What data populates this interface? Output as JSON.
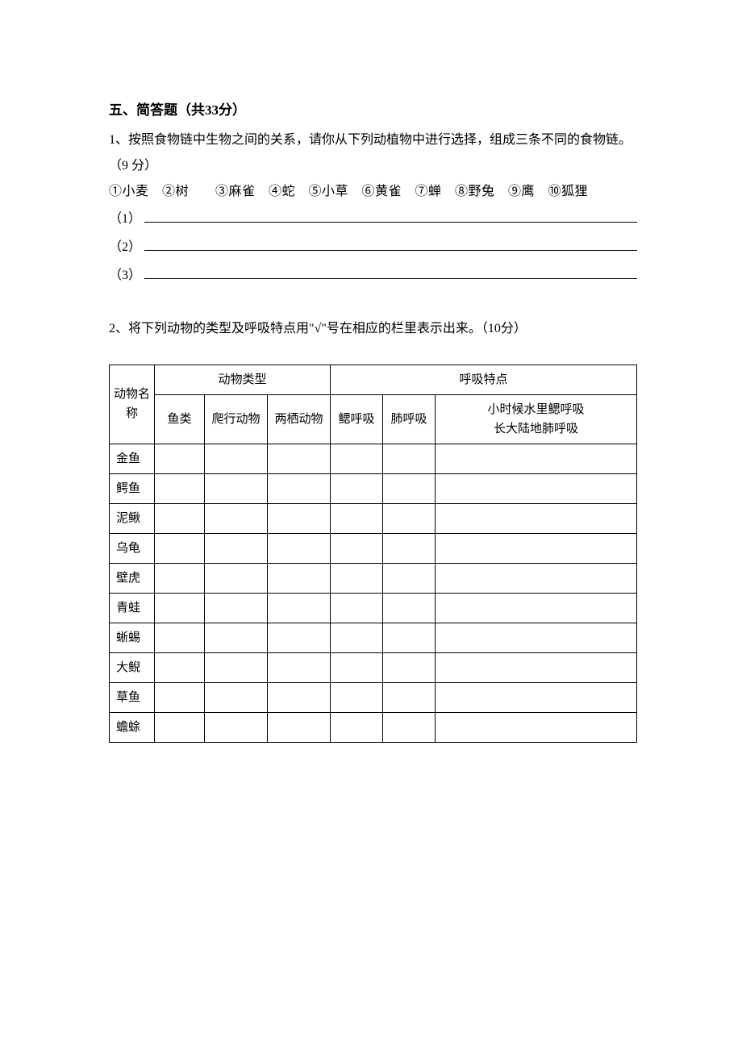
{
  "section": {
    "title": "五、简答题（共33分）"
  },
  "q1": {
    "text_line1": "1、按照食物链中生物之间的关系，请你从下列动植物中进行选择，组成三条不同的食物链。 （9 分）",
    "options": "①小麦　②树　　③麻雀　④蛇　⑤小草　⑥黄雀　⑦蝉　⑧野兔　⑨鹰　⑩狐狸",
    "blanks": [
      "（1）",
      "（2）",
      "（3）"
    ]
  },
  "q2": {
    "text": "2、将下列动物的类型及呼吸特点用\"√\"号在相应的栏里表示出来。（10分）",
    "table": {
      "header_row1": {
        "col0": "动物名称",
        "col_group1": "动物类型",
        "col_group2": "呼吸特点"
      },
      "header_row2": {
        "col1": "鱼类",
        "col2": "爬行动物",
        "col3": "两栖动物",
        "col4": "鳃呼吸",
        "col5": "肺呼吸",
        "col6_line1": "小时候水里鳃呼吸",
        "col6_line2": "长大陆地肺呼吸"
      },
      "rows": [
        "金鱼",
        "鳄鱼",
        "泥鳅",
        "乌龟",
        "壁虎",
        "青蛙",
        "蜥蜴",
        "大鲵",
        "草鱼",
        "蟾蜍"
      ]
    }
  },
  "styling": {
    "background_color": "#ffffff",
    "text_color": "#000000",
    "border_color": "#000000",
    "base_font_size": 16,
    "title_font_size": 17,
    "table_font_size": 15,
    "font_family": "SimSun"
  }
}
